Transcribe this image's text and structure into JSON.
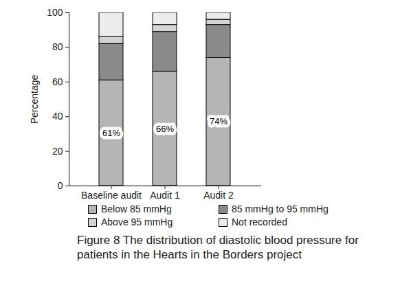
{
  "chart_data": {
    "type": "bar",
    "title": "Figure 8  The distribution of diastolic blood pressure for patients in the Hearts in the Borders project",
    "y_label": "Percentage",
    "categories": [
      "Baseline audit",
      "Audit 1",
      "Audit 2"
    ],
    "series": [
      {
        "name": "Below 85 mmHg",
        "color": "#b5b5b5",
        "values": [
          61,
          66,
          74
        ],
        "value_labels": [
          "61%",
          "66%",
          "74%"
        ]
      },
      {
        "name": "85 mmHg to 95 mmHg",
        "color": "#8a8a8a",
        "values": [
          21,
          23,
          19
        ]
      },
      {
        "name": "Above 95 mmHg",
        "color": "#d4d4d4",
        "values": [
          4,
          4,
          3
        ]
      },
      {
        "name": "Not recorded",
        "color": "#ececec",
        "values": [
          14,
          7,
          4
        ]
      }
    ],
    "stacked": true,
    "data_labels": true,
    "ylim": [
      0,
      100
    ],
    "yticks": [
      0,
      20,
      40,
      60,
      80,
      100
    ],
    "grid": false
  }
}
